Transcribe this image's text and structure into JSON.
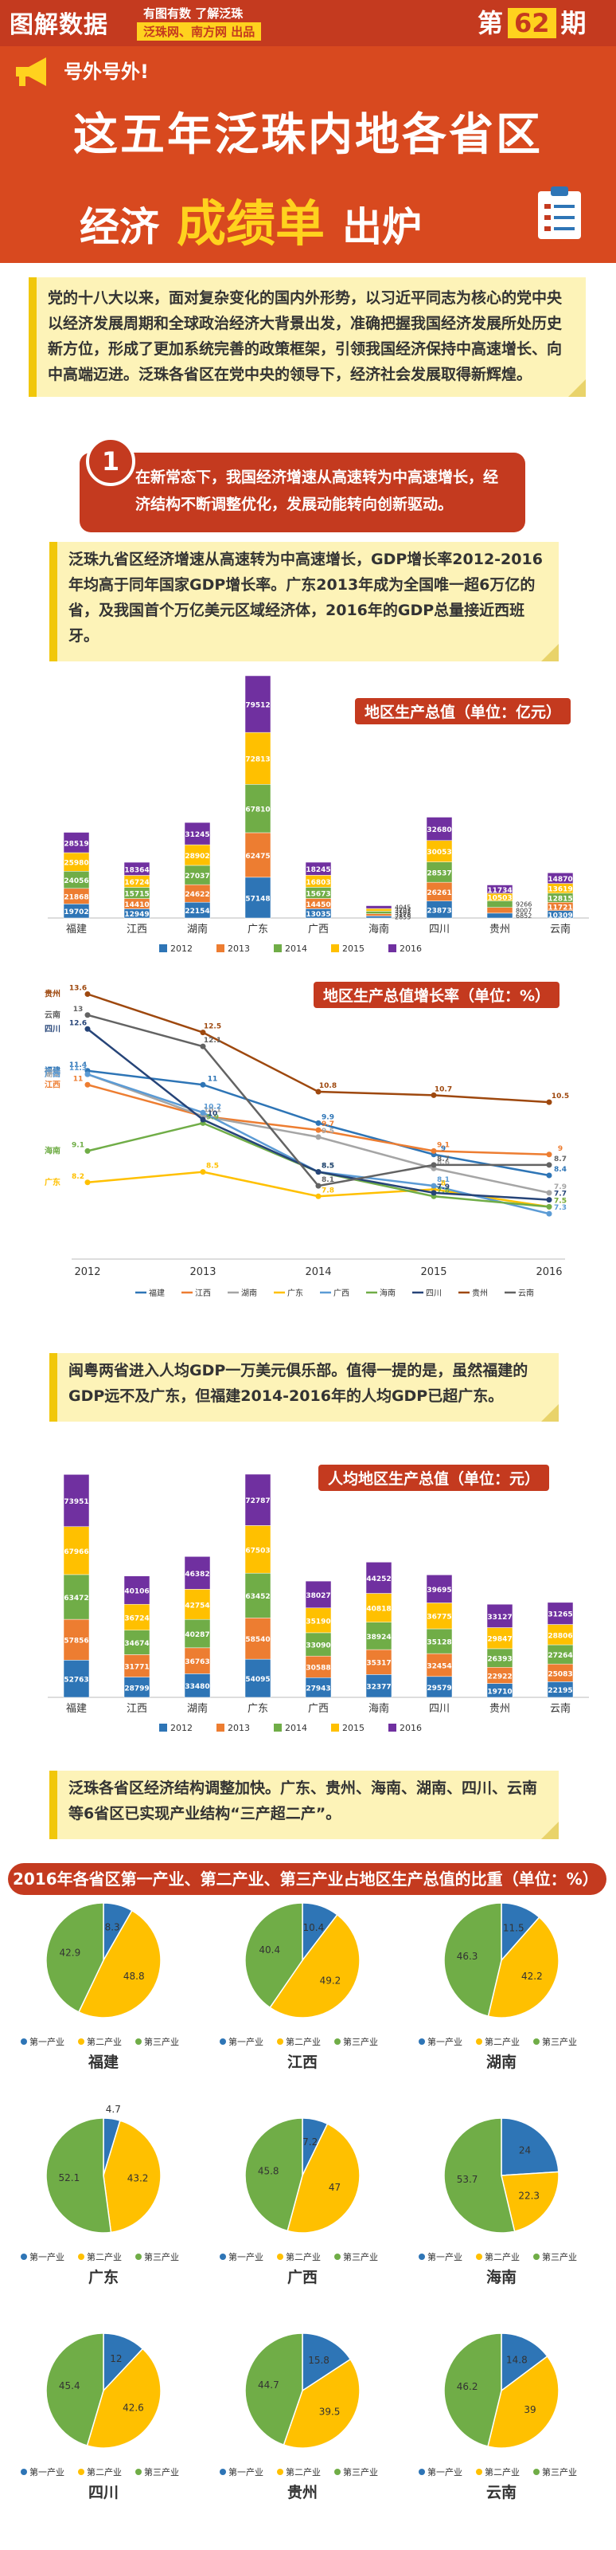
{
  "header": {
    "logo": "图解数据",
    "tag1": "有图有数 了解泛珠",
    "tag2": "泛珠网、南方网 出品",
    "issue_prefix": "第",
    "issue_num": "62",
    "issue_suffix": "期",
    "subtitle": "号外号外!",
    "title1": "这五年泛珠内地各省区",
    "title2a": "经济",
    "title2b": "成绩单",
    "title2c": "出炉"
  },
  "intro": "党的十八大以来，面对复杂变化的国内外形势，以习近平同志为核心的党中央以经济发展周期和全球政治经济大背景出发，准确把握我国经济发展所处历史新方位，形成了更加系统完善的政策框架，引领我国经济保持中高速增长、向中高端迈进。泛珠各省区在党中央的领导下，经济社会发展取得新辉煌。",
  "section1": {
    "num": "1",
    "text": "在新常态下，我国经济增速从高速转为中高速增长，经济结构不断调整优化，发展动能转向创新驱动。"
  },
  "note2": "泛珠九省区经济增速从高速转为中高速增长，GDP增长率2012-2016年均高于同年国家GDP增长率。广东2013年成为全国唯一超6万亿的省，及我国首个万亿美元区域经济体，2016年的GDP总量接近西班牙。",
  "note3": "闽粤两省进入人均GDP一万美元俱乐部。值得一提的是，虽然福建的GDP远不及广东，但福建2014-2016年的人均GDP已超广东。",
  "note4": "泛珠各省区经济结构调整加快。广东、贵州、海南、湖南、四川、云南等6省区已实现产业结构“三产超二产”。",
  "colors": {
    "y2012": "#2e75b6",
    "y2013": "#ed7d31",
    "y2014": "#70ad47",
    "y2015": "#ffc000",
    "y2016": "#7030a0",
    "p1": "#2e75b6",
    "p2": "#ffc000",
    "p3": "#70ad47"
  },
  "chart_data": [
    {
      "type": "bar",
      "stacked": true,
      "title": "地区生产总值（单位：亿元）",
      "categories": [
        "福建",
        "江西",
        "湖南",
        "广东",
        "广西",
        "海南",
        "四川",
        "贵州",
        "云南"
      ],
      "series": [
        {
          "name": "2012",
          "values": [
            19702,
            12949,
            22154,
            57148,
            13035,
            2855,
            23873,
            6852,
            10309
          ]
        },
        {
          "name": "2013",
          "values": [
            21868,
            14410,
            24622,
            62475,
            14450,
            3178,
            26261,
            8007,
            11721
          ]
        },
        {
          "name": "2014",
          "values": [
            24056,
            15715,
            27037,
            67810,
            15673,
            3501,
            28537,
            9266,
            12815
          ]
        },
        {
          "name": "2015",
          "values": [
            25980,
            16724,
            28902,
            72813,
            16803,
            3703,
            30053,
            10503,
            13619
          ]
        },
        {
          "name": "2016",
          "values": [
            28519,
            18364,
            31245,
            79512,
            18245,
            4045,
            32680,
            11734,
            14870
          ]
        }
      ]
    },
    {
      "type": "line",
      "title": "地区生产总值增长率（单位：%）",
      "x": [
        "2012",
        "2013",
        "2014",
        "2015",
        "2016"
      ],
      "ylim": [
        6,
        14
      ],
      "series": [
        {
          "name": "福建",
          "values": [
            11.4,
            11,
            9.9,
            9,
            8.4
          ]
        },
        {
          "name": "江西",
          "values": [
            11,
            10.1,
            9.7,
            9.1,
            9
          ]
        },
        {
          "name": "湖南",
          "values": [
            11.3,
            10.1,
            9.5,
            8.6,
            7.9
          ]
        },
        {
          "name": "广东",
          "values": [
            8.2,
            8.5,
            7.8,
            8,
            7.5
          ]
        },
        {
          "name": "广西",
          "values": [
            11.3,
            10.2,
            8.5,
            8.1,
            7.3
          ]
        },
        {
          "name": "海南",
          "values": [
            9.1,
            9.9,
            8.5,
            7.8,
            7.5
          ]
        },
        {
          "name": "四川",
          "values": [
            12.6,
            10,
            8.5,
            7.9,
            7.7
          ]
        },
        {
          "name": "贵州",
          "values": [
            13.6,
            12.5,
            10.8,
            10.7,
            10.5
          ]
        },
        {
          "name": "云南",
          "values": [
            13,
            12.1,
            8.1,
            8.7,
            8.7
          ]
        }
      ]
    },
    {
      "type": "bar",
      "stacked": true,
      "title": "人均地区生产总值（单位：元）",
      "categories": [
        "福建",
        "江西",
        "湖南",
        "广东",
        "广西",
        "海南",
        "四川",
        "贵州",
        "云南"
      ],
      "series": [
        {
          "name": "2012",
          "values": [
            52763,
            28799,
            33480,
            54095,
            27943,
            32377,
            29579,
            19710,
            22195
          ]
        },
        {
          "name": "2013",
          "values": [
            57856,
            31771,
            36763,
            58540,
            30588,
            35317,
            32454,
            22922,
            25083
          ]
        },
        {
          "name": "2014",
          "values": [
            63472,
            34674,
            40287,
            63452,
            33090,
            38924,
            35128,
            26393,
            27264
          ]
        },
        {
          "name": "2015",
          "values": [
            67966,
            36724,
            42754,
            67503,
            35190,
            40818,
            36775,
            29847,
            28806
          ]
        },
        {
          "name": "2016",
          "values": [
            73951,
            40106,
            46382,
            72787,
            38027,
            44252,
            39695,
            33127,
            31265
          ]
        }
      ]
    },
    {
      "type": "pie",
      "title": "2016年各省区第一产业、第二产业、第三产业占地区生产总值的比重（单位：%）",
      "legend": [
        "第一产业",
        "第二产业",
        "第三产业"
      ],
      "pies": [
        {
          "name": "福建",
          "values": [
            8.3,
            48.8,
            42.9
          ]
        },
        {
          "name": "江西",
          "values": [
            10.4,
            49.2,
            40.4
          ]
        },
        {
          "name": "湖南",
          "values": [
            11.5,
            42.2,
            46.3
          ]
        },
        {
          "name": "广东",
          "values": [
            4.7,
            43.2,
            52.1
          ]
        },
        {
          "name": "广西",
          "values": [
            7.2,
            47,
            45.8
          ]
        },
        {
          "name": "海南",
          "values": [
            24,
            22.3,
            53.7
          ]
        },
        {
          "name": "四川",
          "values": [
            12,
            42.6,
            45.4
          ]
        },
        {
          "name": "贵州",
          "values": [
            15.8,
            39.5,
            44.7
          ]
        },
        {
          "name": "云南",
          "values": [
            14.8,
            39,
            46.2
          ]
        }
      ]
    }
  ]
}
